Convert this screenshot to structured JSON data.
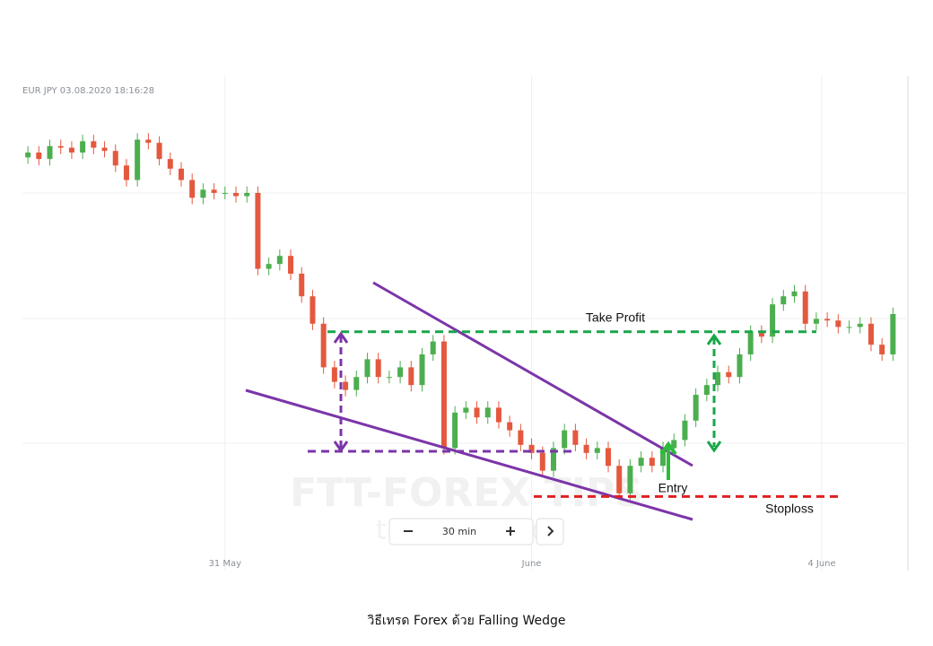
{
  "chart_data": {
    "type": "candlestick",
    "title": "EUR JPY 03.08.2020 18:16:28",
    "caption": "วิธีเทรด Forex ด้วย Falling Wedge",
    "interval": "30 min",
    "watermark": "FTT-FOREX TIPS",
    "watermark_sub": "thailand",
    "up_color": "#4cae4f",
    "down_color": "#e4583e",
    "xlim": [
      -0.5,
      80.2
    ],
    "ylim": [
      118,
      121
    ],
    "xticks": [
      {
        "value": 18,
        "label": "31 May"
      },
      {
        "value": 46,
        "label": "June"
      },
      {
        "value": 72.5,
        "label": "4 June"
      }
    ],
    "open": [
      120.47,
      120.5,
      120.46,
      120.54,
      120.53,
      120.5,
      120.57,
      120.53,
      120.51,
      120.42,
      120.33,
      120.58,
      120.56,
      120.46,
      120.4,
      120.33,
      120.22,
      120.27,
      120.25,
      120.25,
      120.23,
      120.25,
      119.78,
      119.81,
      119.86,
      119.75,
      119.61,
      119.44,
      119.17,
      119.08,
      119.03,
      119.11,
      119.22,
      119.11,
      119.11,
      119.17,
      119.06,
      119.25,
      119.33,
      118.67,
      118.89,
      118.92,
      118.86,
      118.92,
      118.83,
      118.78,
      118.69,
      118.64,
      118.53,
      118.67,
      118.78,
      118.69,
      118.64,
      118.67,
      118.56,
      118.39,
      118.56,
      118.61,
      118.56,
      118.67,
      118.72,
      118.84,
      119.0,
      119.06,
      119.14,
      119.11,
      119.25,
      119.39,
      119.36,
      119.56,
      119.61,
      119.64,
      119.44,
      119.47,
      119.46,
      119.42,
      119.42,
      119.44,
      119.31,
      119.25
    ],
    "high": [
      120.54,
      120.54,
      120.58,
      120.58,
      120.57,
      120.61,
      120.61,
      120.57,
      120.55,
      120.46,
      120.62,
      120.62,
      120.6,
      120.5,
      120.44,
      120.37,
      120.31,
      120.31,
      120.29,
      120.29,
      120.29,
      120.29,
      119.85,
      119.9,
      119.9,
      119.79,
      119.65,
      119.48,
      119.21,
      119.12,
      119.15,
      119.26,
      119.26,
      119.15,
      119.21,
      119.21,
      119.29,
      119.37,
      119.37,
      118.93,
      118.96,
      118.96,
      118.96,
      118.96,
      118.87,
      118.82,
      118.73,
      118.68,
      118.71,
      118.82,
      118.82,
      118.73,
      118.71,
      118.71,
      118.6,
      118.6,
      118.65,
      118.65,
      118.71,
      118.76,
      118.88,
      119.04,
      119.1,
      119.18,
      119.18,
      119.29,
      119.43,
      119.43,
      119.6,
      119.65,
      119.68,
      119.68,
      119.51,
      119.51,
      119.5,
      119.46,
      119.48,
      119.48,
      119.35,
      119.54
    ],
    "low": [
      120.43,
      120.42,
      120.42,
      120.49,
      120.46,
      120.46,
      120.49,
      120.47,
      120.38,
      120.29,
      120.29,
      120.52,
      120.42,
      120.36,
      120.29,
      120.18,
      120.18,
      120.21,
      120.21,
      120.19,
      120.19,
      119.74,
      119.74,
      119.77,
      119.71,
      119.57,
      119.4,
      119.13,
      119.04,
      118.99,
      118.99,
      119.07,
      119.07,
      119.07,
      119.07,
      119.02,
      119.02,
      119.21,
      118.63,
      118.63,
      118.85,
      118.82,
      118.82,
      118.79,
      118.74,
      118.65,
      118.6,
      118.49,
      118.49,
      118.63,
      118.65,
      118.6,
      118.6,
      118.52,
      118.35,
      118.35,
      118.52,
      118.52,
      118.52,
      118.63,
      118.68,
      118.8,
      118.96,
      119.02,
      119.07,
      119.07,
      119.21,
      119.32,
      119.32,
      119.52,
      119.57,
      119.4,
      119.4,
      119.42,
      119.38,
      119.38,
      119.38,
      119.27,
      119.21,
      119.21
    ],
    "close": [
      120.5,
      120.46,
      120.54,
      120.53,
      120.5,
      120.57,
      120.53,
      120.51,
      120.42,
      120.33,
      120.58,
      120.56,
      120.46,
      120.4,
      120.33,
      120.22,
      120.27,
      120.25,
      120.25,
      120.23,
      120.25,
      119.78,
      119.81,
      119.86,
      119.75,
      119.61,
      119.44,
      119.17,
      119.08,
      119.03,
      119.11,
      119.22,
      119.11,
      119.11,
      119.17,
      119.06,
      119.25,
      119.33,
      118.67,
      118.89,
      118.92,
      118.86,
      118.92,
      118.83,
      118.78,
      118.69,
      118.64,
      118.53,
      118.67,
      118.78,
      118.69,
      118.64,
      118.67,
      118.56,
      118.39,
      118.56,
      118.61,
      118.56,
      118.67,
      118.72,
      118.84,
      119.0,
      119.06,
      119.14,
      119.11,
      119.25,
      119.39,
      119.36,
      119.56,
      119.61,
      119.64,
      119.44,
      119.47,
      119.46,
      119.42,
      119.42,
      119.44,
      119.31,
      119.25,
      119.5
    ],
    "annotations": [
      {
        "text": "Take Profit",
        "value": 119.39,
        "color": "#1aa64a"
      },
      {
        "text": "Stoploss",
        "value": 118.37,
        "color": "#e02020"
      },
      {
        "text": "Entry"
      }
    ]
  }
}
